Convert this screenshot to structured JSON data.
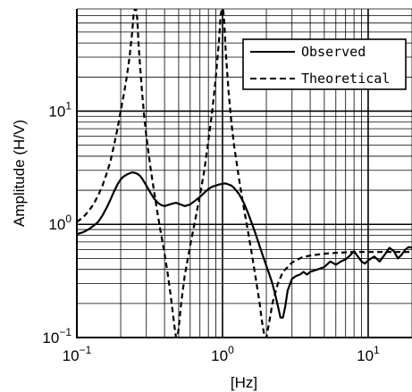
{
  "chart_data": {
    "type": "line",
    "xlabel": "[Hz]",
    "ylabel": "Amplitude (H/V)",
    "xscale": "log",
    "yscale": "log",
    "xlim": [
      0.1,
      20
    ],
    "ylim": [
      0.1,
      80
    ],
    "grid": true,
    "legend_position": "top-right",
    "x_ticks": [
      {
        "value": 0.1,
        "base": "10",
        "exp": "−1"
      },
      {
        "value": 1,
        "base": "10",
        "exp": "0"
      },
      {
        "value": 10,
        "base": "10",
        "exp": "1"
      }
    ],
    "y_ticks": [
      {
        "value": 0.1,
        "base": "10",
        "exp": "−1"
      },
      {
        "value": 1,
        "base": "10",
        "exp": "0"
      },
      {
        "value": 10,
        "base": "10",
        "exp": "1"
      }
    ],
    "series": [
      {
        "name": "Observed",
        "style": "solid",
        "color": "#000000",
        "x": [
          0.1,
          0.11,
          0.12,
          0.13,
          0.14,
          0.15,
          0.16,
          0.17,
          0.18,
          0.19,
          0.2,
          0.21,
          0.22,
          0.23,
          0.24,
          0.25,
          0.26,
          0.27,
          0.28,
          0.3,
          0.32,
          0.34,
          0.36,
          0.38,
          0.4,
          0.42,
          0.45,
          0.48,
          0.5,
          0.55,
          0.6,
          0.65,
          0.7,
          0.75,
          0.8,
          0.85,
          0.9,
          0.95,
          1.0,
          1.05,
          1.1,
          1.15,
          1.2,
          1.3,
          1.4,
          1.5,
          1.6,
          1.7,
          1.8,
          1.9,
          2.0,
          2.1,
          2.2,
          2.3,
          2.4,
          2.5,
          2.6,
          2.7,
          2.8,
          3.0,
          3.2,
          3.4,
          3.6,
          3.8,
          4.0,
          4.5,
          5.0,
          5.5,
          6.0,
          6.5,
          7.0,
          7.5,
          8.0,
          8.5,
          9.0,
          9.5,
          10,
          11,
          12,
          13,
          14,
          15,
          16,
          17,
          18,
          19,
          20
        ],
        "y": [
          0.82,
          0.85,
          0.9,
          0.97,
          1.05,
          1.2,
          1.4,
          1.65,
          1.95,
          2.25,
          2.5,
          2.65,
          2.75,
          2.82,
          2.88,
          2.85,
          2.8,
          2.7,
          2.55,
          2.2,
          1.9,
          1.68,
          1.55,
          1.48,
          1.45,
          1.48,
          1.52,
          1.55,
          1.52,
          1.45,
          1.5,
          1.62,
          1.75,
          1.9,
          2.05,
          2.15,
          2.2,
          2.25,
          2.28,
          2.3,
          2.25,
          2.2,
          2.1,
          1.85,
          1.55,
          1.25,
          1.0,
          0.8,
          0.64,
          0.52,
          0.43,
          0.36,
          0.3,
          0.24,
          0.19,
          0.15,
          0.15,
          0.19,
          0.26,
          0.33,
          0.35,
          0.36,
          0.38,
          0.36,
          0.38,
          0.4,
          0.42,
          0.47,
          0.44,
          0.47,
          0.49,
          0.53,
          0.58,
          0.52,
          0.47,
          0.45,
          0.48,
          0.52,
          0.47,
          0.54,
          0.62,
          0.58,
          0.5,
          0.54,
          0.6,
          0.63,
          0.62
        ]
      },
      {
        "name": "Theoretical",
        "style": "dashed",
        "color": "#000000",
        "x": [
          0.1,
          0.11,
          0.12,
          0.13,
          0.14,
          0.15,
          0.16,
          0.17,
          0.18,
          0.19,
          0.2,
          0.21,
          0.22,
          0.23,
          0.24,
          0.245,
          0.25,
          0.255,
          0.26,
          0.265,
          0.27,
          0.28,
          0.29,
          0.3,
          0.32,
          0.34,
          0.36,
          0.38,
          0.4,
          0.42,
          0.44,
          0.46,
          0.47,
          0.48,
          0.49,
          0.5,
          0.52,
          0.55,
          0.6,
          0.65,
          0.7,
          0.75,
          0.8,
          0.85,
          0.9,
          0.95,
          0.97,
          0.99,
          1.01,
          1.03,
          1.05,
          1.1,
          1.15,
          1.2,
          1.3,
          1.4,
          1.5,
          1.6,
          1.7,
          1.8,
          1.85,
          1.9,
          1.95,
          2.0,
          2.1,
          2.2,
          2.4,
          2.6,
          3.0,
          3.5,
          4.0,
          5.0,
          6.0,
          8.0,
          10,
          12,
          15,
          20
        ],
        "y": [
          1.05,
          1.15,
          1.3,
          1.5,
          1.8,
          2.2,
          2.8,
          3.6,
          5.0,
          7.0,
          10,
          14,
          20,
          30,
          50,
          70,
          80,
          80,
          65,
          40,
          28,
          15,
          9.0,
          6.0,
          3.2,
          1.9,
          1.2,
          0.8,
          0.55,
          0.37,
          0.24,
          0.15,
          0.12,
          0.1,
          0.1,
          0.12,
          0.2,
          0.35,
          0.65,
          1.1,
          1.8,
          3.0,
          5.5,
          10,
          20,
          45,
          70,
          80,
          80,
          60,
          35,
          15,
          8.0,
          5.0,
          2.5,
          1.4,
          0.85,
          0.52,
          0.32,
          0.2,
          0.15,
          0.12,
          0.1,
          0.1,
          0.14,
          0.2,
          0.3,
          0.38,
          0.46,
          0.51,
          0.53,
          0.55,
          0.56,
          0.57,
          0.57,
          0.57,
          0.57,
          0.57
        ]
      }
    ]
  }
}
